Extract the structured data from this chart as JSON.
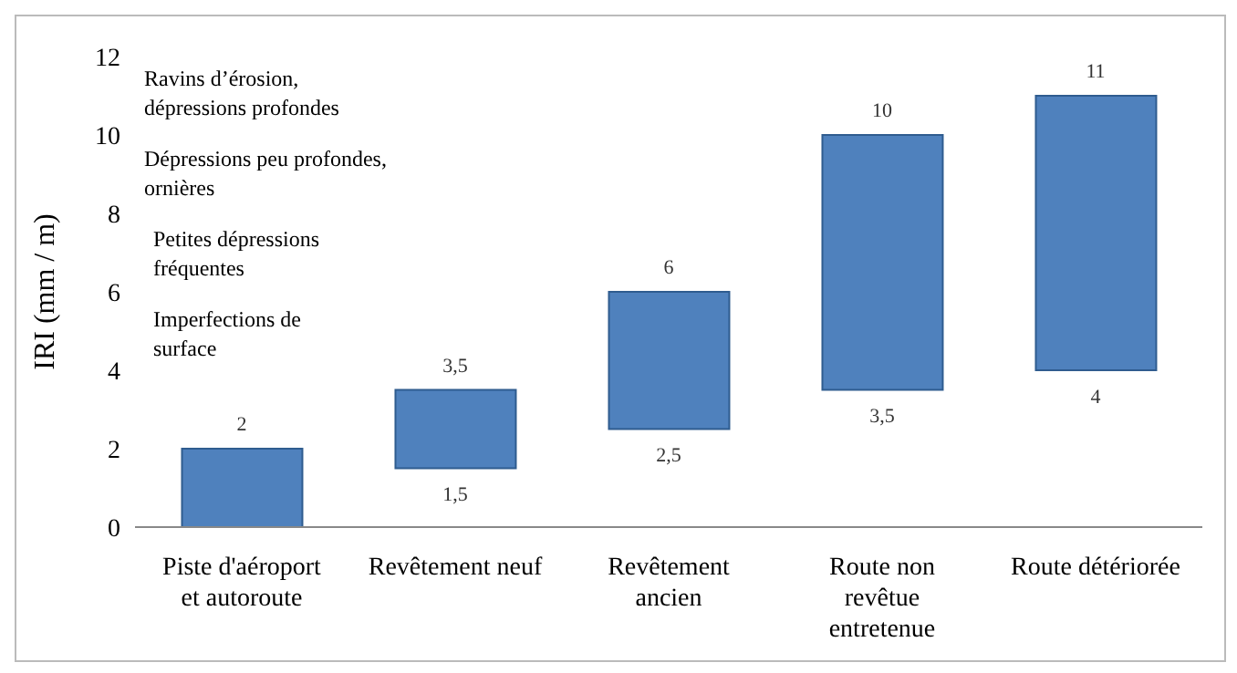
{
  "chart_data": {
    "type": "bar",
    "ylabel": "IRI (mm / m)",
    "categories": [
      "Piste d'aéroport et autoroute",
      "Revêtement neuf",
      "Revêtement ancien",
      "Route non revêtue entretenue",
      "Route détériorée"
    ],
    "base": [
      0,
      1.5,
      2.5,
      3.5,
      4
    ],
    "values": [
      2,
      2,
      3.5,
      6.5,
      7
    ],
    "color": "#4f81bd",
    "ylim": [
      0,
      12
    ],
    "yticks": [
      0,
      2,
      4,
      6,
      8,
      10,
      12
    ],
    "grid": false,
    "legend": false,
    "annotations": [
      "Ravins d’érosion,\ndépressions profondes",
      "Dépressions peu profondes,\nornières",
      "Petites dépressions\nfréquentes",
      "Imperfections de\nsurface",
      {
        "text": "2",
        "x": "Piste d'aéroport et autoroute",
        "y": 2
      },
      {
        "text": "3,5",
        "x": "Revêtement neuf",
        "y": 3.5
      },
      {
        "text": "1,5",
        "x": "Revêtement neuf",
        "y": 1.5
      },
      {
        "text": "6",
        "x": "Revêtement ancien",
        "y": 6
      },
      {
        "text": "2,5",
        "x": "Revêtement ancien",
        "y": 2.5
      },
      {
        "text": "10",
        "x": "Route non revêtue entretenue",
        "y": 10
      },
      {
        "text": "3,5",
        "x": "Route non revêtue entretenue",
        "y": 3.5
      },
      {
        "text": "11",
        "x": "Route détériorée",
        "y": 11
      },
      {
        "text": "4",
        "x": "Route détériorée",
        "y": 4
      }
    ]
  }
}
